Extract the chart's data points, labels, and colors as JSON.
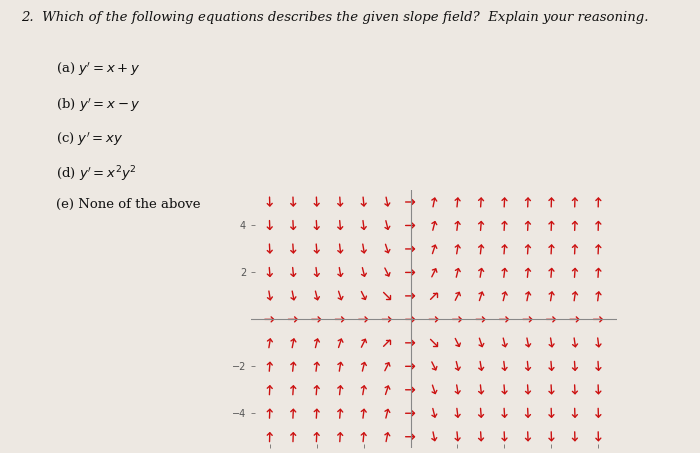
{
  "title_num": "2.",
  "title_text": " Which of the following equations describes the given slope field?",
  "title_explain": "  Explain your reasoning.",
  "options": [
    "(a) $y^{\\prime} = x+y$",
    "(b) $y^{\\prime} = x-y$",
    "(c) $y^{\\prime} = xy$",
    "(d) $y^{\\prime} = x^2y^2$",
    "(e) None of the above"
  ],
  "slope_func": "xy",
  "x_range": [
    -6.8,
    8.8
  ],
  "y_range": [
    -5.5,
    5.5
  ],
  "x_ticks": [
    -6,
    -4,
    -2,
    2,
    4,
    6,
    8
  ],
  "y_ticks": [
    -4,
    -2,
    2,
    4
  ],
  "grid_x_start": -6,
  "grid_x_end": 8,
  "grid_x_step": 1,
  "grid_y_start": -5,
  "grid_y_end": 5,
  "grid_y_step": 1,
  "arrow_color": "#cc1111",
  "bg_color": "#ede8e2",
  "text_color": "#111111",
  "arrow_scale": 0.42
}
